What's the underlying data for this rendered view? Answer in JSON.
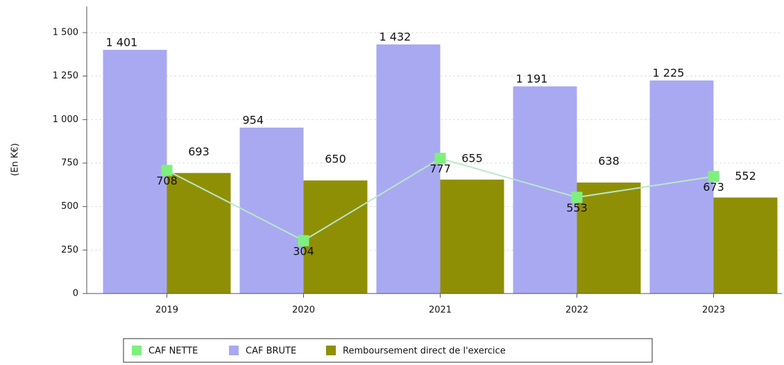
{
  "chart_data": {
    "type": "bar",
    "y_label": "(En K€)",
    "categories": [
      "2019",
      "2020",
      "2021",
      "2022",
      "2023"
    ],
    "series": [
      {
        "name": "CAF NETTE",
        "type": "line",
        "color": "#7ef07e",
        "line_color": "#b8e8c8",
        "values": [
          708,
          304,
          777,
          553,
          673
        ]
      },
      {
        "name": "CAF BRUTE",
        "color": "#a9a9f2",
        "values": [
          1401,
          954,
          1432,
          1191,
          1225
        ],
        "value_labels": [
          "1 401",
          "954",
          "1 432",
          "1 191",
          "1 225"
        ]
      },
      {
        "name": "Remboursement direct de l'exercice",
        "color": "#8f8f06",
        "values": [
          693,
          650,
          655,
          638,
          552
        ]
      }
    ],
    "ylim": [
      0,
      1650
    ],
    "yticks": [
      0,
      250,
      500,
      750,
      {
        "value": 1000,
        "label": "1 000"
      },
      {
        "value": 1250,
        "label": "1 250"
      },
      {
        "value": 1500,
        "label": "1 500"
      }
    ],
    "grid": true
  }
}
